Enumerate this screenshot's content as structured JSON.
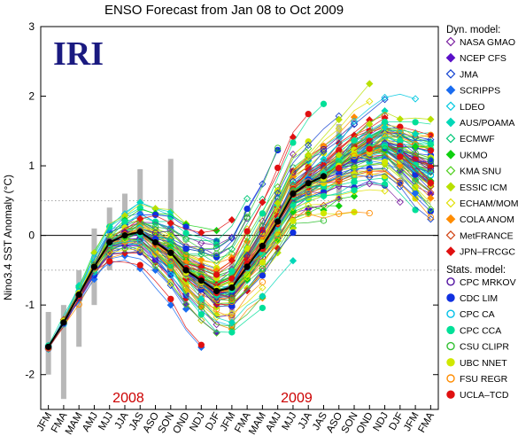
{
  "chart_data": {
    "type": "line",
    "title": "ENSO Forecast from Jan 08 to Oct 2009",
    "logo_text": "IRI",
    "ylabel": "Nino3.4 SST Anomaly (°C)",
    "xlabel": "",
    "ylim": [
      -2.5,
      3
    ],
    "yticks": [
      -2,
      -1,
      0,
      1,
      2,
      3
    ],
    "year_labels": [
      {
        "text": "2008",
        "at_season": "JJA"
      },
      {
        "text": "2009",
        "at_season": "MJJ"
      }
    ],
    "categories": [
      "JFM",
      "FMA",
      "MAM",
      "AMJ",
      "MJJ",
      "JJA",
      "JAS",
      "ASO",
      "SON",
      "OND",
      "NDJ",
      "DJF",
      "JFM",
      "FMA",
      "MAM",
      "AMJ",
      "MJJ",
      "JJA",
      "JAS",
      "ASO",
      "SON",
      "OND",
      "NDJ",
      "DJF",
      "JFM",
      "FMA"
    ],
    "observed": {
      "name": "Observed",
      "color": "#000000",
      "values": [
        -1.6,
        -1.25,
        -0.85,
        -0.45,
        -0.1,
        0.0,
        0.05,
        -0.1,
        -0.25,
        -0.5,
        -0.65,
        -0.8,
        -0.75,
        -0.45,
        -0.15,
        0.2,
        0.6,
        0.75,
        0.85
      ]
    },
    "observed_range_bars": [
      {
        "season_index": 0,
        "low": -2.0,
        "high": -1.1
      },
      {
        "season_index": 1,
        "low": -2.35,
        "high": -1.0
      },
      {
        "season_index": 2,
        "low": -1.6,
        "high": -0.5
      },
      {
        "season_index": 3,
        "low": -1.0,
        "high": 0.1
      },
      {
        "season_index": 4,
        "low": -0.5,
        "high": 0.4
      },
      {
        "season_index": 5,
        "low": -0.2,
        "high": 0.6
      },
      {
        "season_index": 6,
        "low": -0.05,
        "high": 0.95
      },
      {
        "season_index": 8,
        "low": 0.1,
        "high": 1.1
      },
      {
        "season_index": 12,
        "low": -1.35,
        "high": -0.4
      },
      {
        "season_index": 19,
        "low": 0.5,
        "high": 1.6
      }
    ],
    "legend": {
      "placement": "right",
      "dyn_heading": "Dyn. model:",
      "stat_heading": "Stats. model:",
      "dynamical_models": [
        {
          "name": "NASA GMAO",
          "color": "#7a1fa0",
          "marker": "diamond-open"
        },
        {
          "name": "NCEP CFS",
          "color": "#5a10c8",
          "marker": "diamond"
        },
        {
          "name": "JMA",
          "color": "#1040d0",
          "marker": "diamond-open"
        },
        {
          "name": "SCRIPPS",
          "color": "#1a6cf0",
          "marker": "diamond"
        },
        {
          "name": "LDEO",
          "color": "#00c8e0",
          "marker": "diamond-open"
        },
        {
          "name": "AUS/POAMA",
          "color": "#00d8b8",
          "marker": "diamond"
        },
        {
          "name": "ECMWF",
          "color": "#00c878",
          "marker": "diamond-open"
        },
        {
          "name": "UKMO",
          "color": "#10d010",
          "marker": "diamond"
        },
        {
          "name": "KMA SNU",
          "color": "#50d020",
          "marker": "diamond-open"
        },
        {
          "name": "ESSIC ICM",
          "color": "#b8e000",
          "marker": "diamond"
        },
        {
          "name": "ECHAM/MOM",
          "color": "#e0e000",
          "marker": "diamond-open"
        },
        {
          "name": "COLA ANOM",
          "color": "#ff8c00",
          "marker": "diamond"
        },
        {
          "name": "MetFRANCE",
          "color": "#d04010",
          "marker": "diamond-open"
        },
        {
          "name": "JPN–FRCGC",
          "color": "#e01010",
          "marker": "diamond"
        }
      ],
      "statistical_models": [
        {
          "name": "CPC MRKOV",
          "color": "#5010a0",
          "marker": "circle-open"
        },
        {
          "name": "CDC LIM",
          "color": "#1030e0",
          "marker": "circle"
        },
        {
          "name": "CPC CA",
          "color": "#00c0e8",
          "marker": "circle-open"
        },
        {
          "name": "CPC CCA",
          "color": "#00e098",
          "marker": "circle"
        },
        {
          "name": "CSU CLIPR",
          "color": "#30c030",
          "marker": "circle-open"
        },
        {
          "name": "UBC NNET",
          "color": "#d0e800",
          "marker": "circle"
        },
        {
          "name": "FSU REGR",
          "color": "#ff8c00",
          "marker": "circle-open"
        },
        {
          "name": "UCLA–TCD",
          "color": "#e01010",
          "marker": "circle"
        }
      ]
    },
    "grid": "dotted horizontal lines at ±0.5, solid zero line",
    "forecast_description": "Each model issues a 9-season forecast plume starting from each month Jan 2008 through Oct 2009; plumes trend upward from La Niña to El Niño conditions."
  }
}
